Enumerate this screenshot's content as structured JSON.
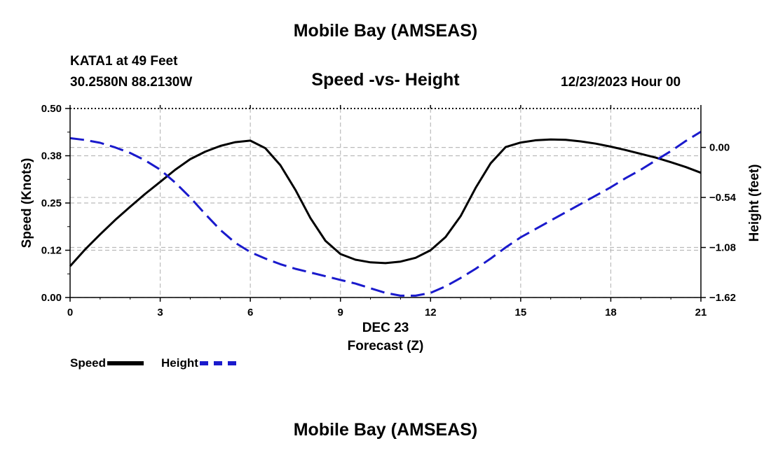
{
  "header": {
    "title": "Mobile Bay (AMSEAS)",
    "station": "KATA1 at 49 Feet",
    "coordinates": "30.2580N  88.2130W",
    "subtitle": "Speed -vs- Height",
    "run_time": "12/23/2023 Hour 00"
  },
  "footer": {
    "title": "Mobile Bay (AMSEAS)"
  },
  "legend": {
    "speed_label": "Speed",
    "height_label": "Height"
  },
  "colors": {
    "speed": "#000000",
    "height": "#1a1acc",
    "grid": "#bbbbbb"
  },
  "chart_data": {
    "type": "line",
    "title": "Speed -vs- Height",
    "xlabel": "Forecast (Z)",
    "xsublabel": "DEC 23",
    "ylabel": "Speed (Knots)",
    "y2label": "Height (feet)",
    "xlim": [
      0,
      21
    ],
    "ylim": [
      0,
      0.5
    ],
    "y2lim": [
      -1.62,
      0.42
    ],
    "xticks": [
      0,
      3,
      6,
      9,
      12,
      15,
      18,
      21
    ],
    "xtick_labels": [
      "0",
      "3",
      "6",
      "9",
      "12",
      "15",
      "18",
      "21"
    ],
    "yticks": [
      0.0,
      0.125,
      0.25,
      0.375,
      0.5
    ],
    "ytick_labels": [
      "0.00",
      "0.12",
      "0.25",
      "0.38",
      "0.50"
    ],
    "y2ticks": [
      0.0,
      -0.54,
      -1.08,
      -1.62
    ],
    "y2tick_labels": [
      "0.00",
      "−0.54",
      "−1.08",
      "−1.62"
    ],
    "grid": true,
    "series": [
      {
        "name": "Speed",
        "axis": "left",
        "style": "solid",
        "x": [
          0,
          0.5,
          1,
          1.5,
          2,
          2.5,
          3,
          3.5,
          4,
          4.5,
          5,
          5.5,
          6,
          6.5,
          7,
          7.5,
          8,
          8.5,
          9,
          9.5,
          10,
          10.5,
          11,
          11.5,
          12,
          12.5,
          13,
          13.5,
          14,
          14.5,
          15,
          15.5,
          16,
          16.5,
          17,
          17.5,
          18,
          18.5,
          19,
          19.5,
          20,
          20.5,
          21
        ],
        "values": [
          0.083,
          0.127,
          0.167,
          0.205,
          0.24,
          0.274,
          0.306,
          0.338,
          0.366,
          0.386,
          0.401,
          0.411,
          0.415,
          0.395,
          0.35,
          0.285,
          0.21,
          0.15,
          0.115,
          0.1,
          0.093,
          0.091,
          0.095,
          0.105,
          0.125,
          0.16,
          0.215,
          0.29,
          0.355,
          0.398,
          0.41,
          0.416,
          0.418,
          0.417,
          0.413,
          0.407,
          0.399,
          0.39,
          0.38,
          0.37,
          0.358,
          0.345,
          0.33
        ]
      },
      {
        "name": "Height",
        "axis": "right",
        "style": "dashed",
        "x": [
          0,
          0.5,
          1,
          1.5,
          2,
          2.5,
          3,
          3.5,
          4,
          4.5,
          5,
          5.5,
          6,
          6.5,
          7,
          7.5,
          8,
          8.5,
          9,
          9.5,
          10,
          10.5,
          11,
          11.5,
          12,
          12.5,
          13,
          13.5,
          14,
          14.5,
          15,
          15.5,
          16,
          16.5,
          17,
          17.5,
          18,
          18.5,
          19,
          19.5,
          20,
          20.5,
          21
        ],
        "values": [
          0.1,
          0.08,
          0.05,
          0.0,
          -0.06,
          -0.14,
          -0.24,
          -0.38,
          -0.54,
          -0.72,
          -0.89,
          -1.03,
          -1.13,
          -1.2,
          -1.26,
          -1.31,
          -1.35,
          -1.39,
          -1.43,
          -1.47,
          -1.52,
          -1.57,
          -1.6,
          -1.6,
          -1.57,
          -1.5,
          -1.41,
          -1.31,
          -1.2,
          -1.08,
          -0.97,
          -0.88,
          -0.79,
          -0.7,
          -0.61,
          -0.52,
          -0.43,
          -0.33,
          -0.24,
          -0.14,
          -0.04,
          0.07,
          0.17
        ]
      }
    ]
  }
}
